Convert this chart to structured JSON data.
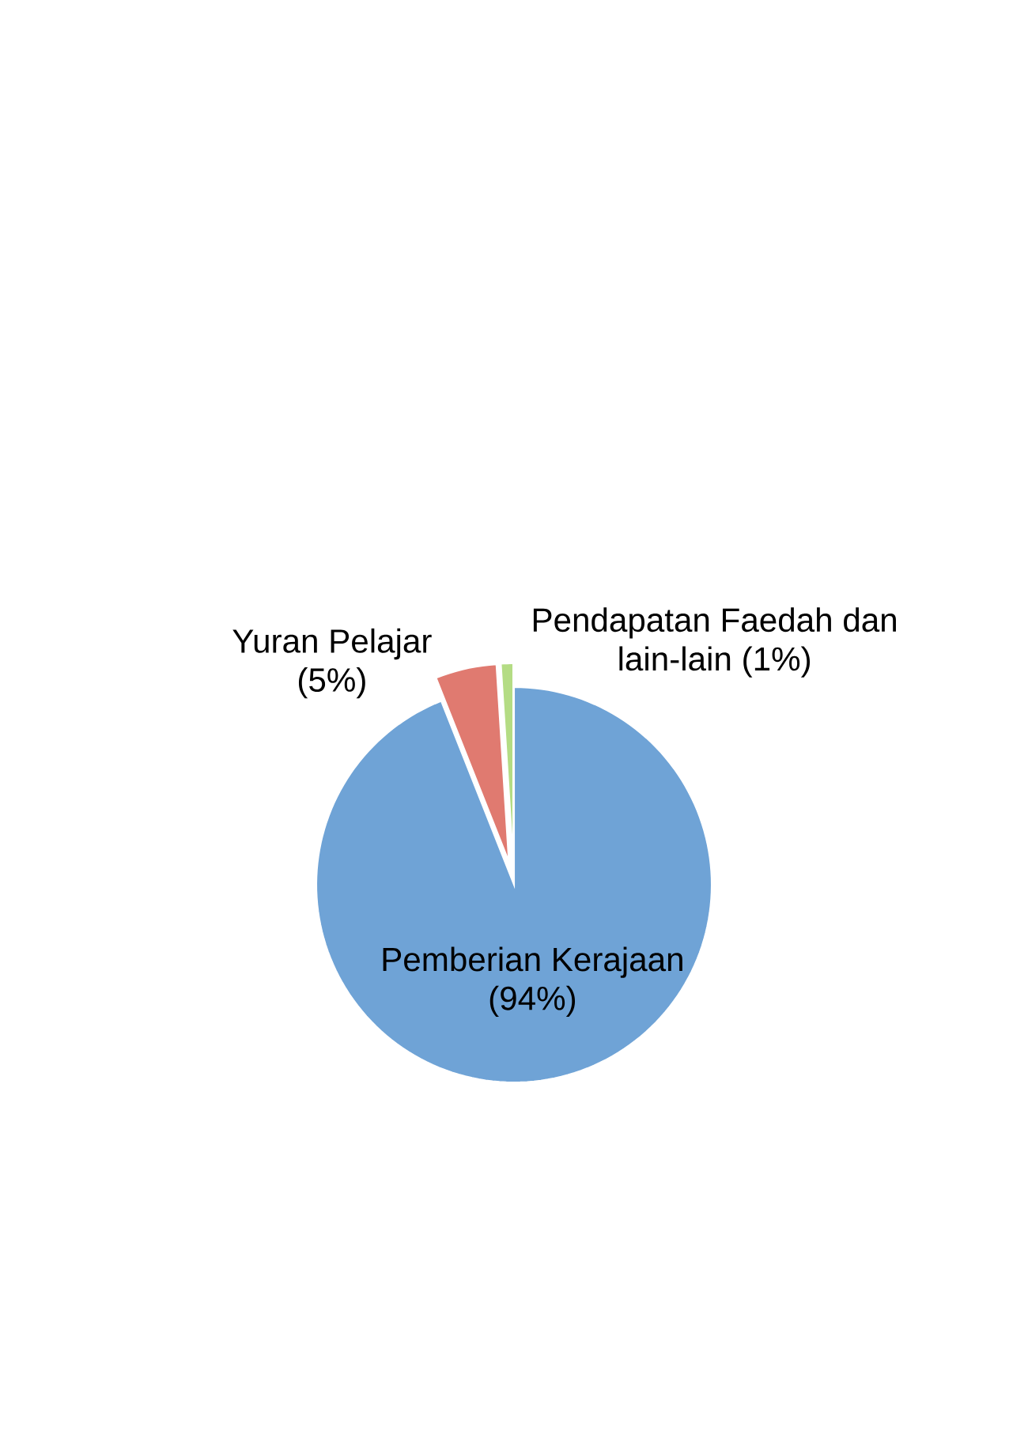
{
  "chart_data": {
    "type": "pie",
    "categories": [
      "Pemberian Kerajaan",
      "Yuran Pelajar",
      "Pendapatan Faedah dan lain-lain"
    ],
    "values": [
      94,
      5,
      1
    ],
    "value_labels": [
      "(94%)",
      "(5%)",
      "(1%)"
    ],
    "colors": [
      "#6fa3d6",
      "#e07a70",
      "#b4dc84"
    ]
  }
}
